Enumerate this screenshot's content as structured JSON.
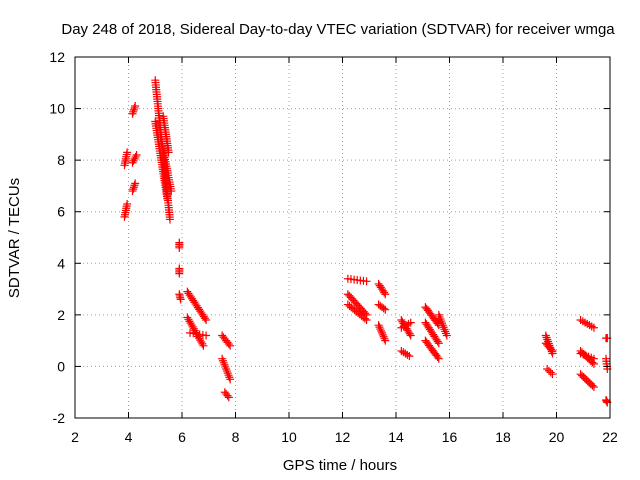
{
  "chart_data": {
    "type": "scatter",
    "title": "Day 248 of 2018, Sidereal Day-to-day VTEC variation (SDTVAR) for receiver wmga",
    "xlabel": "GPS time / hours",
    "ylabel": "SDTVAR / TECUs",
    "xlim": [
      2,
      22
    ],
    "ylim": [
      -2,
      12
    ],
    "xticks": [
      2,
      4,
      6,
      8,
      10,
      12,
      14,
      16,
      18,
      20,
      22
    ],
    "yticks": [
      -2,
      0,
      2,
      4,
      6,
      8,
      10,
      12
    ],
    "grid": true,
    "marker": "+",
    "color": "#ff0000",
    "series": [
      {
        "name": "SDTVAR",
        "segments": [
          {
            "x0": 3.85,
            "x1": 3.95,
            "y0": 5.8,
            "y1": 6.3
          },
          {
            "x0": 3.85,
            "x1": 3.95,
            "y0": 7.8,
            "y1": 8.3
          },
          {
            "x0": 4.15,
            "x1": 4.25,
            "y0": 9.8,
            "y1": 10.1
          },
          {
            "x0": 4.15,
            "x1": 4.3,
            "y0": 7.9,
            "y1": 8.2
          },
          {
            "x0": 4.15,
            "x1": 4.25,
            "y0": 6.8,
            "y1": 7.1
          },
          {
            "x0": 5.0,
            "x1": 5.55,
            "y0": 11.1,
            "y1": 5.7
          },
          {
            "x0": 5.0,
            "x1": 5.45,
            "y0": 9.5,
            "y1": 6.5
          },
          {
            "x0": 5.3,
            "x1": 5.5,
            "y0": 9.7,
            "y1": 8.3
          },
          {
            "x0": 5.2,
            "x1": 5.6,
            "y0": 8.9,
            "y1": 6.8
          },
          {
            "x0": 5.9,
            "x1": 5.9,
            "y0": 4.8,
            "y1": 4.6
          },
          {
            "x0": 5.9,
            "x1": 5.9,
            "y0": 3.8,
            "y1": 3.6
          },
          {
            "x0": 5.9,
            "x1": 5.95,
            "y0": 2.8,
            "y1": 2.6
          },
          {
            "x0": 6.2,
            "x1": 6.9,
            "y0": 2.9,
            "y1": 1.8
          },
          {
            "x0": 6.2,
            "x1": 6.8,
            "y0": 1.9,
            "y1": 0.8
          },
          {
            "x0": 6.3,
            "x1": 6.9,
            "y0": 1.3,
            "y1": 1.2
          },
          {
            "x0": 7.5,
            "x1": 7.8,
            "y0": 1.2,
            "y1": 0.8
          },
          {
            "x0": 7.5,
            "x1": 7.8,
            "y0": 0.3,
            "y1": -0.5
          },
          {
            "x0": 7.6,
            "x1": 7.75,
            "y0": -1.0,
            "y1": -1.2
          },
          {
            "x0": 12.2,
            "x1": 12.9,
            "y0": 3.4,
            "y1": 3.3
          },
          {
            "x0": 12.2,
            "x1": 12.9,
            "y0": 2.8,
            "y1": 2.0
          },
          {
            "x0": 12.2,
            "x1": 12.9,
            "y0": 2.4,
            "y1": 1.8
          },
          {
            "x0": 13.35,
            "x1": 13.6,
            "y0": 3.2,
            "y1": 2.8
          },
          {
            "x0": 13.35,
            "x1": 13.6,
            "y0": 2.4,
            "y1": 2.2
          },
          {
            "x0": 13.35,
            "x1": 13.6,
            "y0": 1.6,
            "y1": 1.0
          },
          {
            "x0": 14.2,
            "x1": 14.55,
            "y0": 1.8,
            "y1": 1.2
          },
          {
            "x0": 14.2,
            "x1": 14.55,
            "y0": 1.5,
            "y1": 1.7
          },
          {
            "x0": 14.2,
            "x1": 14.5,
            "y0": 0.6,
            "y1": 0.4
          },
          {
            "x0": 15.1,
            "x1": 15.6,
            "y0": 2.3,
            "y1": 1.6
          },
          {
            "x0": 15.1,
            "x1": 15.6,
            "y0": 1.0,
            "y1": 0.3
          },
          {
            "x0": 15.1,
            "x1": 15.6,
            "y0": 1.7,
            "y1": 0.9
          },
          {
            "x0": 15.6,
            "x1": 15.9,
            "y0": 2.0,
            "y1": 1.2
          },
          {
            "x0": 19.6,
            "x1": 19.85,
            "y0": 1.2,
            "y1": 0.5
          },
          {
            "x0": 19.6,
            "x1": 19.85,
            "y0": 0.9,
            "y1": 0.6
          },
          {
            "x0": 19.65,
            "x1": 19.85,
            "y0": -0.1,
            "y1": -0.3
          },
          {
            "x0": 20.9,
            "x1": 21.4,
            "y0": 1.8,
            "y1": 1.5
          },
          {
            "x0": 20.9,
            "x1": 21.4,
            "y0": 0.6,
            "y1": 0.1
          },
          {
            "x0": 20.9,
            "x1": 21.4,
            "y0": -0.3,
            "y1": -0.8
          },
          {
            "x0": 20.9,
            "x1": 21.4,
            "y0": 0.5,
            "y1": 0.3
          },
          {
            "x0": 21.85,
            "x1": 21.9,
            "y0": 1.1,
            "y1": 1.1
          },
          {
            "x0": 21.85,
            "x1": 21.9,
            "y0": 0.3,
            "y1": -0.1
          },
          {
            "x0": 21.85,
            "x1": 21.9,
            "y0": -1.3,
            "y1": -1.4
          }
        ]
      }
    ]
  }
}
